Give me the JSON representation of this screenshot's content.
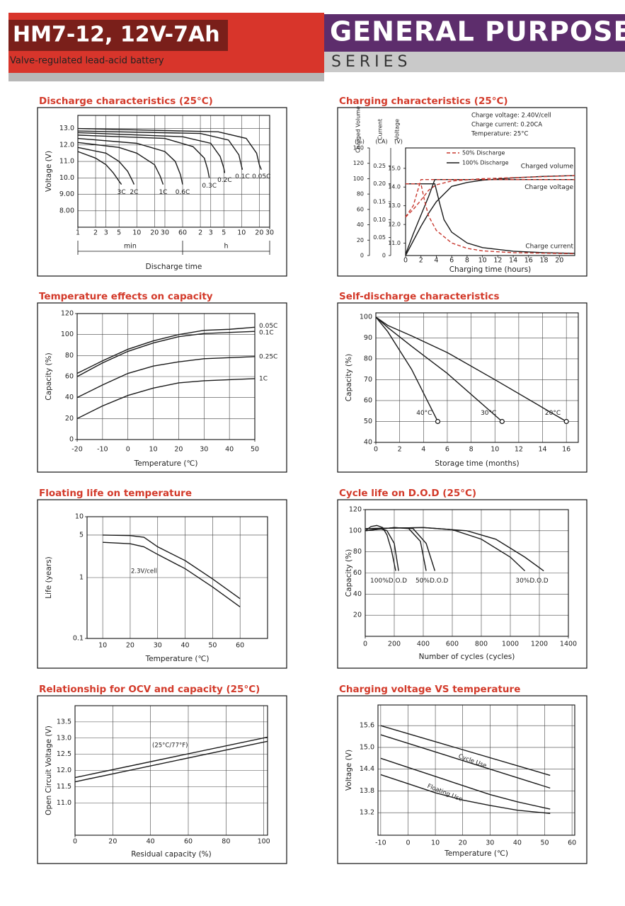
{
  "header": {
    "model": "HM7-12, 12V-7Ah",
    "subtitle": "Valve-regulated lead-acid battery",
    "series_title": "GENERAL PURPOSE",
    "series_label": "SERIES"
  },
  "chart_data": [
    {
      "type": "line",
      "title": "Discharge characteristics (25°C)",
      "xlabel": "Discharge time",
      "ylabel": "Voltage (V)",
      "x_unit_labels": [
        "min",
        "h"
      ],
      "xlog": true,
      "grid": true,
      "xlim": [
        1,
        1800
      ],
      "ylim": [
        7,
        13.8
      ],
      "xticks": [
        1,
        2,
        3,
        5,
        10,
        20,
        30,
        60,
        {
          "value": 120,
          "label": "2"
        },
        {
          "value": 180,
          "label": "3"
        },
        {
          "value": 300,
          "label": "5"
        },
        {
          "value": 600,
          "label": "10"
        },
        {
          "value": 1200,
          "label": "20"
        },
        {
          "value": 1800,
          "label": "30"
        }
      ],
      "yticks": [
        {
          "value": 8,
          "label": "8.00"
        },
        {
          "value": 9,
          "label": "9.00"
        },
        {
          "value": 10,
          "label": "10.0"
        },
        {
          "value": 11,
          "label": "11.0"
        },
        {
          "value": 12,
          "label": "12.0"
        },
        {
          "value": 13,
          "label": "13.0"
        }
      ],
      "series": [
        {
          "name": "3C",
          "color": "#1a1a1a",
          "x": [
            1,
            2,
            3,
            4,
            5,
            5.5
          ],
          "values": [
            11.6,
            11.2,
            10.8,
            10.3,
            9.8,
            9.6
          ]
        },
        {
          "name": "2C",
          "color": "#1a1a1a",
          "x": [
            1,
            3,
            5,
            7,
            8.5,
            9
          ],
          "values": [
            11.85,
            11.5,
            11.0,
            10.4,
            9.8,
            9.6
          ]
        },
        {
          "name": "1C",
          "color": "#1a1a1a",
          "x": [
            1,
            5,
            10,
            20,
            25,
            28
          ],
          "values": [
            12.15,
            11.85,
            11.5,
            10.8,
            10.1,
            9.6
          ]
        },
        {
          "name": "0.6C",
          "color": "#1a1a1a",
          "x": [
            1,
            10,
            30,
            45,
            55,
            60
          ],
          "values": [
            12.4,
            12.1,
            11.6,
            11.0,
            10.2,
            9.6
          ]
        },
        {
          "name": "0.3C",
          "color": "#1a1a1a",
          "x": [
            1,
            30,
            90,
            140,
            160,
            170
          ],
          "values": [
            12.6,
            12.4,
            11.9,
            11.2,
            10.5,
            10.0
          ]
        },
        {
          "name": "0.2C",
          "color": "#1a1a1a",
          "x": [
            1,
            60,
            180,
            260,
            300,
            310
          ],
          "values": [
            12.75,
            12.5,
            12.1,
            11.3,
            10.6,
            10.3
          ]
        },
        {
          "name": "0.1C",
          "color": "#1a1a1a",
          "x": [
            1,
            120,
            360,
            540,
            600,
            620
          ],
          "values": [
            12.85,
            12.7,
            12.3,
            11.4,
            10.7,
            10.5
          ]
        },
        {
          "name": "0.05C",
          "color": "#1a1a1a",
          "x": [
            1,
            240,
            720,
            1080,
            1200,
            1300
          ],
          "values": [
            13.0,
            12.8,
            12.4,
            11.5,
            10.8,
            10.5
          ]
        }
      ]
    },
    {
      "type": "line",
      "title": "Charging characteristics (25°C)",
      "xlabel": "Charging time (hours)",
      "grid": false,
      "ylabel": "Charged Volume",
      "yunit": "(%)",
      "y2label": "Current",
      "y2unit": "(CA)",
      "y3label": "Voltage",
      "y3unit": "(V)",
      "annotations": [
        "Charge voltage: 2.40V/cell",
        "Charge current: 0.20CA",
        "Temperature: 25°C"
      ],
      "legend": [
        {
          "name": "50% Discharge",
          "color": "#c8382f",
          "dash": true
        },
        {
          "name": "100% Discharge",
          "color": "#1a1a1a",
          "dash": false
        }
      ],
      "xlim": [
        0,
        22
      ],
      "ylim": [
        0,
        140
      ],
      "y2lim": [
        0,
        0.3
      ],
      "y3lim": [
        10.34,
        16.09
      ],
      "xticks": [
        0,
        2,
        4,
        6,
        8,
        10,
        12,
        14,
        16,
        18,
        20
      ],
      "yticks": [
        0,
        20,
        40,
        60,
        80,
        100,
        120,
        140
      ],
      "y2ticks": [
        0,
        0.05,
        {
          "value": 0.1,
          "label": "0.10"
        },
        0.15,
        {
          "value": 0.2,
          "label": "0.20"
        },
        0.25
      ],
      "y3ticks": [
        {
          "value": 11,
          "label": "11.0"
        },
        {
          "value": 12,
          "label": "12.0"
        },
        {
          "value": 13,
          "label": "13.0"
        },
        {
          "value": 14,
          "label": "14.0"
        },
        {
          "value": 15,
          "label": "15.0"
        }
      ],
      "series": [
        {
          "name": "Charged volume",
          "color": "#1a1a1a",
          "axis": "y",
          "x": [
            0,
            2,
            3,
            4,
            6,
            8,
            10,
            14,
            18,
            22
          ],
          "values": [
            0,
            38,
            55,
            70,
            90,
            95,
            98,
            101,
            103,
            104
          ]
        },
        {
          "color": "#c8382f",
          "dash": true,
          "axis": "y",
          "x": [
            0,
            1,
            2,
            3,
            4,
            6,
            10,
            22
          ],
          "values": [
            50,
            60,
            72,
            85,
            92,
            97,
            100,
            104
          ]
        },
        {
          "name": "Charge voltage",
          "color": "#1a1a1a",
          "axis": "y3",
          "x": [
            0,
            1,
            2,
            3,
            3.8,
            22
          ],
          "values": [
            10.4,
            11.5,
            12.5,
            13.5,
            14.4,
            14.4
          ]
        },
        {
          "color": "#c8382f",
          "dash": true,
          "axis": "y3",
          "x": [
            0,
            1,
            2,
            22
          ],
          "values": [
            12.4,
            13.0,
            14.4,
            14.4
          ]
        },
        {
          "name": "Charge current",
          "color": "#1a1a1a",
          "axis": "y2",
          "x": [
            0,
            3.8,
            4.5,
            5,
            6,
            8,
            10,
            14,
            18,
            22
          ],
          "values": [
            0.2,
            0.2,
            0.14,
            0.1,
            0.065,
            0.035,
            0.022,
            0.012,
            0.008,
            0.006
          ]
        },
        {
          "color": "#c8382f",
          "dash": true,
          "axis": "y2",
          "x": [
            0,
            2,
            2.5,
            3,
            4,
            6,
            8,
            10,
            14,
            22
          ],
          "values": [
            0.2,
            0.2,
            0.15,
            0.11,
            0.07,
            0.035,
            0.02,
            0.013,
            0.008,
            0.005
          ]
        }
      ]
    },
    {
      "type": "line",
      "title": "Temperature effects on capacity",
      "xlabel": "Temperature (℃)",
      "ylabel": "Capacity (%)",
      "grid": true,
      "xlim": [
        -20,
        50
      ],
      "ylim": [
        0,
        120
      ],
      "xticks": [
        -20,
        -10,
        0,
        10,
        20,
        30,
        40,
        50
      ],
      "yticks": [
        0,
        20,
        40,
        60,
        80,
        100,
        120
      ],
      "series": [
        {
          "name": "0.05C",
          "color": "#1a1a1a",
          "x": [
            -20,
            -10,
            0,
            10,
            20,
            30,
            40,
            50
          ],
          "values": [
            63,
            75,
            86,
            94,
            100,
            104,
            105,
            107
          ]
        },
        {
          "name": "0.1C",
          "color": "#1a1a1a",
          "x": [
            -20,
            -10,
            0,
            10,
            20,
            30,
            40,
            50
          ],
          "values": [
            60,
            73,
            84,
            92,
            98,
            101,
            102,
            103
          ]
        },
        {
          "name": "0.25C",
          "color": "#1a1a1a",
          "x": [
            -20,
            -10,
            0,
            10,
            20,
            30,
            40,
            50
          ],
          "values": [
            40,
            52,
            63,
            70,
            74,
            77,
            78,
            79
          ]
        },
        {
          "name": "1C",
          "color": "#1a1a1a",
          "x": [
            -20,
            -10,
            0,
            10,
            20,
            30,
            40,
            50
          ],
          "values": [
            20,
            32,
            42,
            49,
            54,
            56,
            57,
            58
          ]
        }
      ]
    },
    {
      "type": "line",
      "title": "Self-discharge characteristics",
      "xlabel": "Storage time (months)",
      "ylabel": "Capacity (%)",
      "grid": true,
      "end_marker": true,
      "xlim": [
        0,
        17
      ],
      "ylim": [
        40,
        102
      ],
      "xticks": [
        0,
        2,
        4,
        6,
        8,
        10,
        12,
        14,
        16
      ],
      "yticks": [
        40,
        50,
        60,
        70,
        80,
        90,
        100
      ],
      "series": [
        {
          "name": "40°C",
          "color": "#1a1a1a",
          "x": [
            0,
            1,
            3,
            5.2
          ],
          "values": [
            100,
            93,
            75,
            50
          ]
        },
        {
          "name": "30°C",
          "color": "#1a1a1a",
          "x": [
            0,
            1,
            3,
            6,
            10.6
          ],
          "values": [
            100,
            95,
            86,
            73,
            50
          ]
        },
        {
          "name": "20°C",
          "color": "#1a1a1a",
          "x": [
            0,
            1,
            3,
            6,
            10,
            16
          ],
          "values": [
            100,
            96,
            91,
            83,
            70,
            50
          ]
        }
      ]
    },
    {
      "type": "line",
      "title": "Floating life on temperature",
      "xlabel": "Temperature (℃)",
      "ylabel": "Life (years)",
      "grid": true,
      "ylog": true,
      "annotations": [
        "2.3V/cell"
      ],
      "xlim": [
        4.3,
        70
      ],
      "ylim": [
        0.1,
        10
      ],
      "xticks": [
        10,
        20,
        30,
        40,
        50,
        60
      ],
      "yticks": [
        0.1,
        1,
        5,
        10
      ],
      "series": [
        {
          "color": "#1a1a1a",
          "x": [
            10,
            20,
            25,
            30,
            40,
            50,
            60
          ],
          "values": [
            5,
            4.9,
            4.6,
            3.2,
            1.9,
            0.95,
            0.45
          ]
        },
        {
          "color": "#1a1a1a",
          "x": [
            10,
            20,
            25,
            30,
            40,
            50,
            60
          ],
          "values": [
            3.8,
            3.6,
            3.2,
            2.4,
            1.4,
            0.7,
            0.33
          ]
        }
      ]
    },
    {
      "type": "line",
      "title": "Cycle life on D.O.D (25°C)",
      "xlabel": "Number of cycles (cycles)",
      "ylabel": "Capacity (%)",
      "grid": true,
      "xlim": [
        0,
        1400
      ],
      "ylim": [
        0,
        120
      ],
      "xticks": [
        0,
        200,
        400,
        600,
        800,
        1000,
        1200,
        1400
      ],
      "yticks": [
        20,
        40,
        60,
        80,
        100,
        120
      ],
      "series": [
        {
          "name": "100%D.O.D",
          "color": "#1a1a1a",
          "x": [
            0,
            40,
            80,
            120,
            150,
            180,
            210
          ],
          "values": [
            100,
            104,
            105,
            103,
            96,
            82,
            62
          ]
        },
        {
          "color": "#1a1a1a",
          "x": [
            0,
            100,
            150,
            200,
            230
          ],
          "values": [
            100,
            102,
            100,
            88,
            62
          ]
        },
        {
          "name": "50%D.O.D",
          "color": "#1a1a1a",
          "x": [
            0,
            200,
            300,
            380,
            420
          ],
          "values": [
            100,
            103,
            102,
            90,
            62
          ]
        },
        {
          "color": "#1a1a1a",
          "x": [
            0,
            200,
            330,
            420,
            480
          ],
          "values": [
            100,
            103,
            102,
            88,
            62
          ]
        },
        {
          "name": "30%D.O.D",
          "color": "#1a1a1a",
          "x": [
            0,
            400,
            600,
            800,
            1000,
            1100
          ],
          "values": [
            102,
            103,
            101,
            92,
            75,
            62
          ]
        },
        {
          "color": "#1a1a1a",
          "x": [
            0,
            400,
            700,
            900,
            1100,
            1230
          ],
          "values": [
            102,
            103,
            100,
            92,
            75,
            62
          ]
        }
      ]
    },
    {
      "type": "line",
      "title": "Relationship for OCV and capacity (25°C)",
      "xlabel": "Residual capacity (%)",
      "ylabel": "Open Circuit Voltage (V)",
      "grid": true,
      "annotations": [
        "(25°C/77°F)"
      ],
      "xlim": [
        0,
        102
      ],
      "ylim": [
        10,
        14
      ],
      "xticks": [
        0,
        20,
        40,
        60,
        80,
        100
      ],
      "yticks": [
        {
          "value": 11,
          "label": "11.0"
        },
        11.5,
        {
          "value": 12,
          "label": "12.0"
        },
        12.5,
        {
          "value": 13,
          "label": "13.0"
        },
        13.5
      ],
      "series": [
        {
          "color": "#1a1a1a",
          "x": [
            0,
            102
          ],
          "values": [
            11.78,
            13.03
          ]
        },
        {
          "color": "#1a1a1a",
          "x": [
            0,
            102
          ],
          "values": [
            11.65,
            12.9
          ]
        }
      ]
    },
    {
      "type": "line",
      "title": "Charging voltage VS temperature",
      "xlabel": "Temperature (℃)",
      "ylabel": "Voltage (V)",
      "grid": true,
      "annotations": [
        "Cycle Use",
        "Floating Use"
      ],
      "xlim": [
        -11,
        61
      ],
      "ylim": [
        12.58,
        16.17
      ],
      "xticks": [
        -10,
        0,
        10,
        20,
        30,
        40,
        50,
        60
      ],
      "yticks": [
        13.2,
        13.8,
        14.4,
        {
          "value": 15,
          "label": "15.0"
        },
        15.6
      ],
      "series": [
        {
          "color": "#1a1a1a",
          "x": [
            -10,
            52
          ],
          "values": [
            15.6,
            14.23
          ]
        },
        {
          "color": "#1a1a1a",
          "x": [
            -10,
            52
          ],
          "values": [
            15.35,
            13.88
          ]
        },
        {
          "color": "#1a1a1a",
          "x": [
            -10,
            0,
            10,
            20,
            30,
            40,
            52
          ],
          "values": [
            14.7,
            14.45,
            14.2,
            13.95,
            13.7,
            13.5,
            13.3
          ]
        },
        {
          "color": "#1a1a1a",
          "x": [
            -10,
            0,
            10,
            20,
            30,
            40,
            52
          ],
          "values": [
            14.25,
            14.0,
            13.75,
            13.55,
            13.4,
            13.27,
            13.18
          ]
        }
      ]
    }
  ]
}
